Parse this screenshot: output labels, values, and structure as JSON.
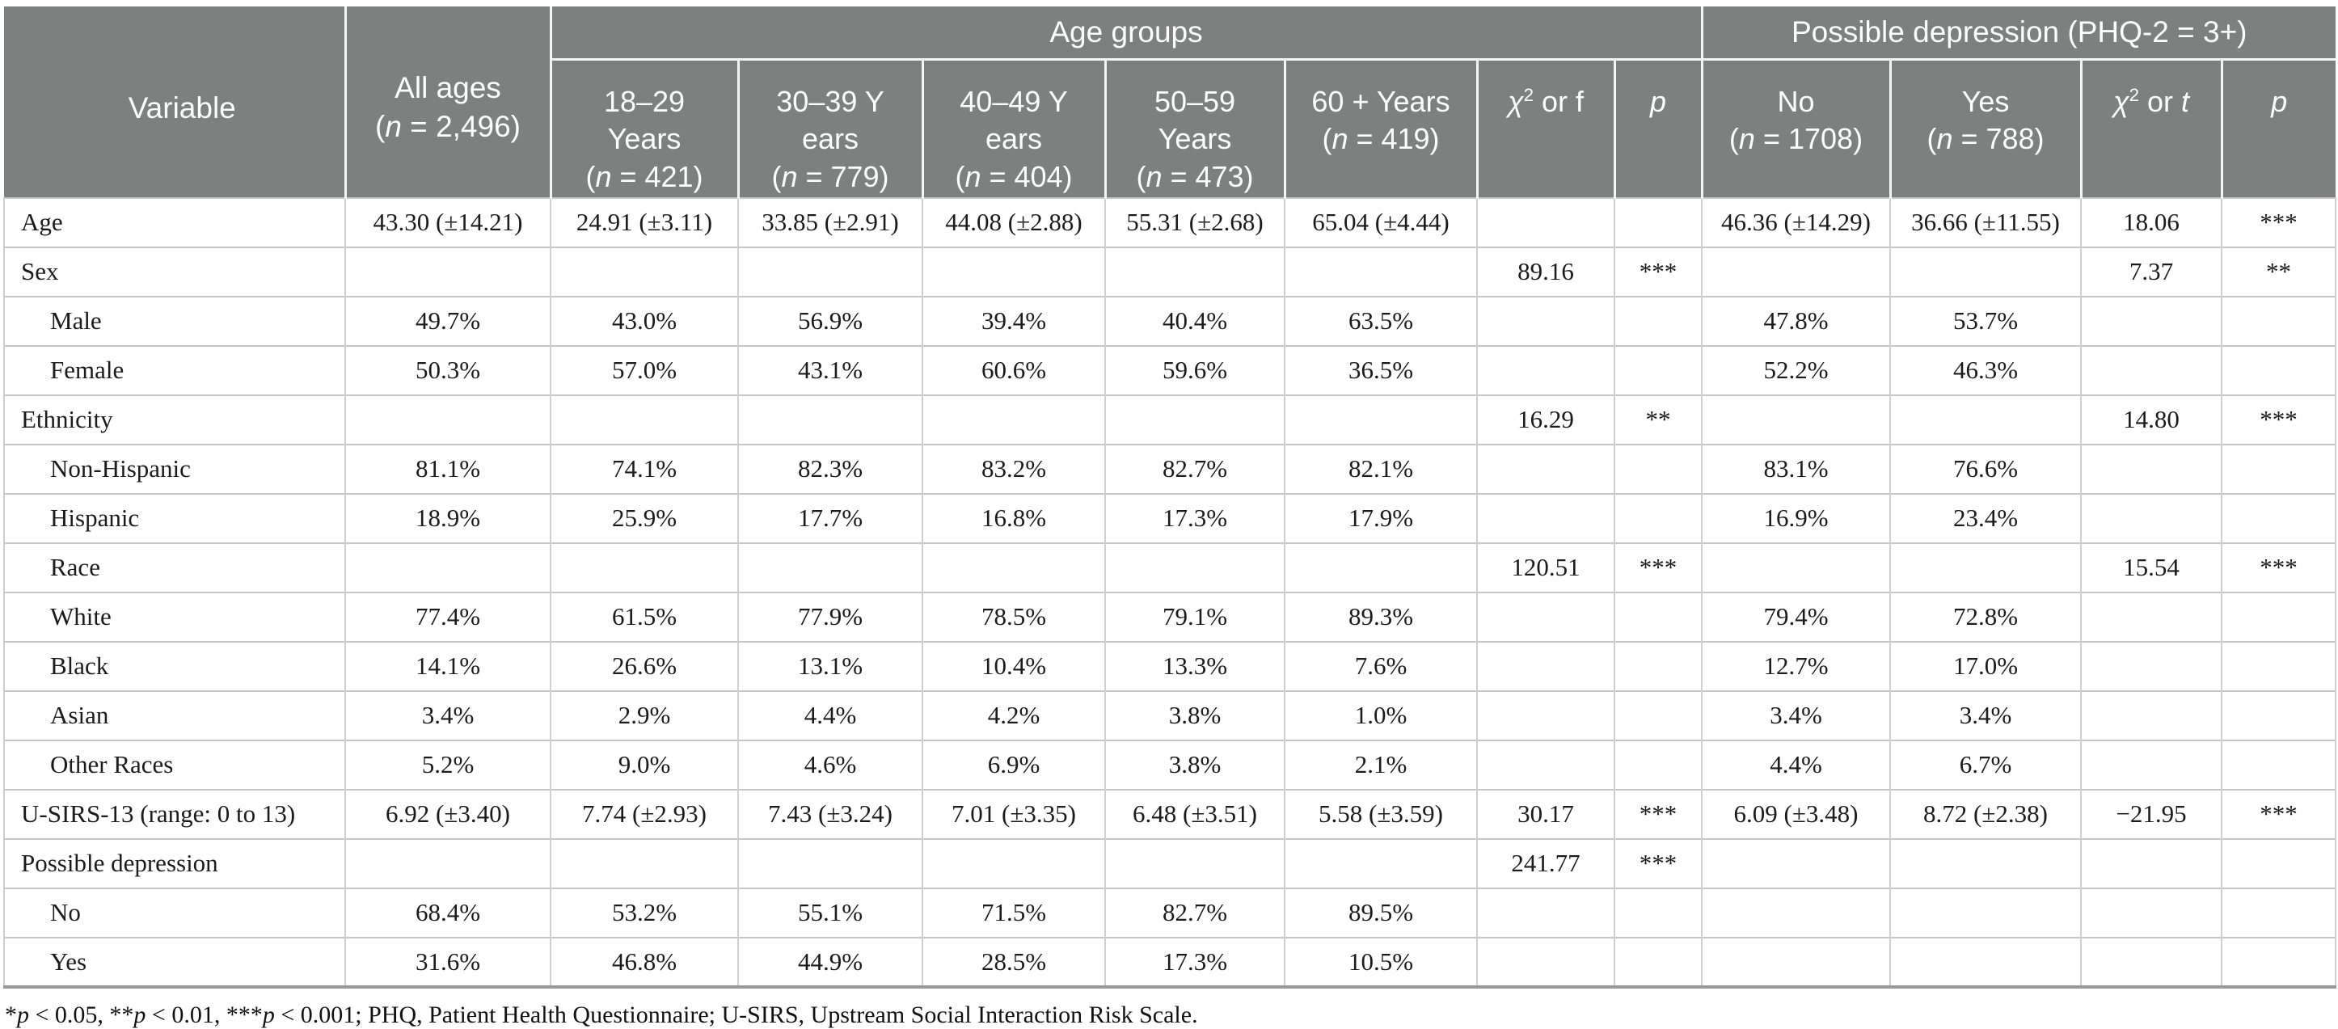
{
  "colors": {
    "page_bg": "#ffffff",
    "header_bg": "#7e7f7f",
    "header_text": "#ffffff",
    "header_divider": "#f5f5f5",
    "row_line": "#c6c6c6",
    "col_line": "#cfcfcf",
    "bottom_line": "#9a9a9a",
    "body_text": "#1b1b1b"
  },
  "header": {
    "variable": "Variable",
    "all_ages_lines": [
      [
        {
          "t": "All ages"
        }
      ],
      [
        {
          "t": "("
        },
        {
          "t": "n",
          "i": true
        },
        {
          "t": " = 2,496)"
        }
      ]
    ],
    "age_groups": "Age groups",
    "possible_depression": "Possible depression (PHQ-2 = 3+)",
    "subcols": [
      {
        "key": "18-29-years",
        "lines": [
          [
            {
              "t": "18–29"
            }
          ],
          [
            {
              "t": "Years"
            }
          ],
          [
            {
              "t": "("
            },
            {
              "t": "n",
              "i": true
            },
            {
              "t": " = 421)"
            }
          ]
        ]
      },
      {
        "key": "30-39-years",
        "lines": [
          [
            {
              "t": "30–39 Y"
            }
          ],
          [
            {
              "t": "ears"
            }
          ],
          [
            {
              "t": "("
            },
            {
              "t": "n",
              "i": true
            },
            {
              "t": " = 779)"
            }
          ]
        ]
      },
      {
        "key": "40-49-years",
        "lines": [
          [
            {
              "t": "40–49 Y"
            }
          ],
          [
            {
              "t": "ears"
            }
          ],
          [
            {
              "t": "("
            },
            {
              "t": "n",
              "i": true
            },
            {
              "t": " = 404)"
            }
          ]
        ]
      },
      {
        "key": "50-59-years",
        "lines": [
          [
            {
              "t": "50–59"
            }
          ],
          [
            {
              "t": "Years"
            }
          ],
          [
            {
              "t": "("
            },
            {
              "t": "n",
              "i": true
            },
            {
              "t": " = 473)"
            }
          ]
        ]
      },
      {
        "key": "60-plus-years",
        "lines": [
          [
            {
              "t": "60 + Years"
            }
          ],
          [
            {
              "t": "("
            },
            {
              "t": "n",
              "i": true
            },
            {
              "t": " = 419)"
            }
          ]
        ]
      },
      {
        "key": "chi2-or-f",
        "lines": [
          [
            {
              "t": "χ",
              "i": true
            },
            {
              "t": "2",
              "s": true
            },
            {
              "t": " or f"
            }
          ]
        ]
      },
      {
        "key": "p-age",
        "lines": [
          [
            {
              "t": "p",
              "i": true
            }
          ]
        ]
      },
      {
        "key": "dep-no",
        "lines": [
          [
            {
              "t": "No"
            }
          ],
          [
            {
              "t": "("
            },
            {
              "t": "n",
              "i": true
            },
            {
              "t": " = 1708)"
            }
          ]
        ]
      },
      {
        "key": "dep-yes",
        "lines": [
          [
            {
              "t": "Yes"
            }
          ],
          [
            {
              "t": "("
            },
            {
              "t": "n",
              "i": true
            },
            {
              "t": " = 788)"
            }
          ]
        ]
      },
      {
        "key": "chi2-or-t",
        "lines": [
          [
            {
              "t": "χ",
              "i": true
            },
            {
              "t": "2",
              "s": true
            },
            {
              "t": " or "
            },
            {
              "t": "t",
              "i": true
            }
          ]
        ]
      },
      {
        "key": "p-dep",
        "lines": [
          [
            {
              "t": "p",
              "i": true
            }
          ]
        ]
      }
    ]
  },
  "rows": [
    {
      "label": "Age",
      "indent": false,
      "cells": [
        "43.30 (±14.21)",
        "24.91 (±3.11)",
        "33.85 (±2.91)",
        "44.08 (±2.88)",
        "55.31 (±2.68)",
        "65.04 (±4.44)",
        "",
        "",
        "46.36 (±14.29)",
        "36.66 (±11.55)",
        "18.06",
        "***"
      ]
    },
    {
      "label": "Sex",
      "indent": false,
      "cells": [
        "",
        "",
        "",
        "",
        "",
        "",
        "89.16",
        "***",
        "",
        "",
        "7.37",
        "**"
      ]
    },
    {
      "label": "Male",
      "indent": true,
      "cells": [
        "49.7%",
        "43.0%",
        "56.9%",
        "39.4%",
        "40.4%",
        "63.5%",
        "",
        "",
        "47.8%",
        "53.7%",
        "",
        ""
      ]
    },
    {
      "label": "Female",
      "indent": true,
      "cells": [
        "50.3%",
        "57.0%",
        "43.1%",
        "60.6%",
        "59.6%",
        "36.5%",
        "",
        "",
        "52.2%",
        "46.3%",
        "",
        ""
      ]
    },
    {
      "label": "Ethnicity",
      "indent": false,
      "cells": [
        "",
        "",
        "",
        "",
        "",
        "",
        "16.29",
        "**",
        "",
        "",
        "14.80",
        "***"
      ]
    },
    {
      "label": "Non-Hispanic",
      "indent": true,
      "cells": [
        "81.1%",
        "74.1%",
        "82.3%",
        "83.2%",
        "82.7%",
        "82.1%",
        "",
        "",
        "83.1%",
        "76.6%",
        "",
        ""
      ]
    },
    {
      "label": "Hispanic",
      "indent": true,
      "cells": [
        "18.9%",
        "25.9%",
        "17.7%",
        "16.8%",
        "17.3%",
        "17.9%",
        "",
        "",
        "16.9%",
        "23.4%",
        "",
        ""
      ]
    },
    {
      "label": "Race",
      "indent": true,
      "cells": [
        "",
        "",
        "",
        "",
        "",
        "",
        "120.51",
        "***",
        "",
        "",
        "15.54",
        "***"
      ]
    },
    {
      "label": "White",
      "indent": true,
      "cells": [
        "77.4%",
        "61.5%",
        "77.9%",
        "78.5%",
        "79.1%",
        "89.3%",
        "",
        "",
        "79.4%",
        "72.8%",
        "",
        ""
      ]
    },
    {
      "label": "Black",
      "indent": true,
      "cells": [
        "14.1%",
        "26.6%",
        "13.1%",
        "10.4%",
        "13.3%",
        "7.6%",
        "",
        "",
        "12.7%",
        "17.0%",
        "",
        ""
      ]
    },
    {
      "label": "Asian",
      "indent": true,
      "cells": [
        "3.4%",
        "2.9%",
        "4.4%",
        "4.2%",
        "3.8%",
        "1.0%",
        "",
        "",
        "3.4%",
        "3.4%",
        "",
        ""
      ]
    },
    {
      "label": "Other Races",
      "indent": true,
      "cells": [
        "5.2%",
        "9.0%",
        "4.6%",
        "6.9%",
        "3.8%",
        "2.1%",
        "",
        "",
        "4.4%",
        "6.7%",
        "",
        ""
      ]
    },
    {
      "label": "U-SIRS-13 (range: 0 to 13)",
      "indent": false,
      "cells": [
        "6.92 (±3.40)",
        "7.74 (±2.93)",
        "7.43 (±3.24)",
        "7.01 (±3.35)",
        "6.48 (±3.51)",
        "5.58 (±3.59)",
        "30.17",
        "***",
        "6.09 (±3.48)",
        "8.72 (±2.38)",
        "−21.95",
        "***"
      ]
    },
    {
      "label": "Possible depression",
      "indent": false,
      "cells": [
        "",
        "",
        "",
        "",
        "",
        "",
        "241.77",
        "***",
        "",
        "",
        "",
        ""
      ]
    },
    {
      "label": "No",
      "indent": true,
      "cells": [
        "68.4%",
        "53.2%",
        "55.1%",
        "71.5%",
        "82.7%",
        "89.5%",
        "",
        "",
        "",
        "",
        "",
        ""
      ]
    },
    {
      "label": "Yes",
      "indent": true,
      "cells": [
        "31.6%",
        "46.8%",
        "44.9%",
        "28.5%",
        "17.3%",
        "10.5%",
        "",
        "",
        "",
        "",
        "",
        ""
      ]
    }
  ],
  "footnote_segments": [
    {
      "t": "*"
    },
    {
      "t": "p",
      "i": true
    },
    {
      "t": " < 0.05, **"
    },
    {
      "t": "p",
      "i": true
    },
    {
      "t": " < 0.01, ***"
    },
    {
      "t": "p",
      "i": true
    },
    {
      "t": " < 0.001; PHQ, Patient Health Questionnaire; U-SIRS, Upstream Social Interaction Risk Scale."
    }
  ]
}
